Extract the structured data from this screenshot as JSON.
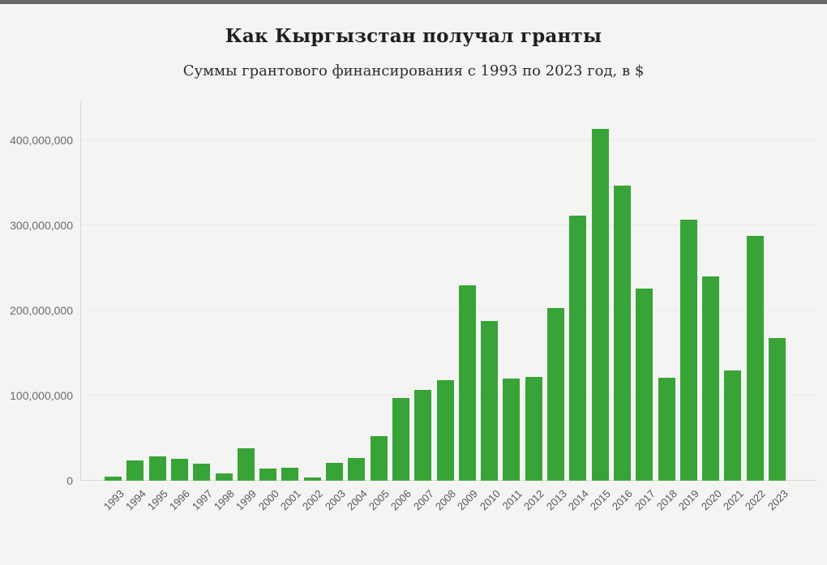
{
  "header": {
    "title": "Как Кыргызстан получал гранты",
    "subtitle": "Суммы грантового финансирования с 1993 по 2023 год, в $"
  },
  "colors": {
    "background": "#f4f4f2",
    "top_strip": "#666666",
    "bar": "#38a437",
    "grid": "#ebebe9",
    "axis": "#d7d7d5",
    "title_text": "#1f1f1f",
    "subtitle_text": "#2d2d2d",
    "ytick_text": "#6a6a6a",
    "xtick_text": "#565656"
  },
  "chart_data": {
    "type": "bar",
    "title": "Как Кыргызстан получал гранты",
    "subtitle": "Суммы грантового финансирования с 1993 по 2023 год, в $",
    "categories": [
      "1993",
      "1994",
      "1995",
      "1996",
      "1997",
      "1998",
      "1999",
      "2000",
      "2001",
      "2002",
      "2003",
      "2004",
      "2005",
      "2006",
      "2007",
      "2008",
      "2009",
      "2010",
      "2011",
      "2012",
      "2013",
      "2014",
      "2015",
      "2016",
      "2017",
      "2018",
      "2019",
      "2020",
      "2021",
      "2022",
      "2023"
    ],
    "values": [
      5000000,
      24000000,
      29000000,
      26000000,
      20000000,
      9000000,
      38000000,
      14000000,
      15000000,
      4000000,
      21000000,
      27000000,
      52000000,
      97000000,
      107000000,
      118000000,
      230000000,
      188000000,
      120000000,
      122000000,
      203000000,
      311000000,
      413000000,
      347000000,
      226000000,
      121000000,
      307000000,
      240000000,
      130000000,
      288000000,
      168000000
    ],
    "xlabel": "",
    "ylabel": "",
    "ylim": [
      0,
      450000000
    ],
    "yticks": [
      0,
      100000000,
      200000000,
      300000000,
      400000000
    ],
    "ytick_labels": [
      "0",
      "100,000,000",
      "200,000,000",
      "300,000,000",
      "400,000,000"
    ],
    "grid": "horizontal",
    "legend": "none",
    "bar_color": "#38a437"
  }
}
